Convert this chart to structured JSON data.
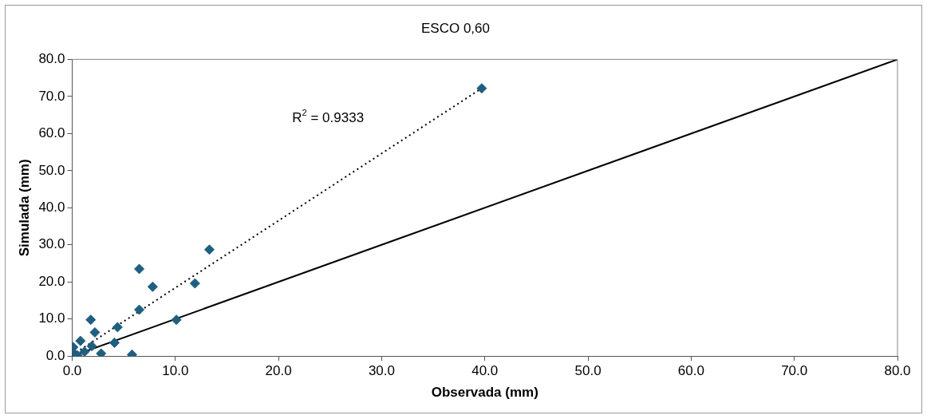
{
  "chart_data": {
    "type": "scatter",
    "title": "ESCO 0,60",
    "xlabel": "Observada (mm)",
    "ylabel": "Simulada (mm)",
    "xlim": [
      0,
      80
    ],
    "xticks": [
      {
        "value": 0,
        "label": "0.0"
      },
      {
        "value": 10,
        "label": "10.0"
      },
      {
        "value": 20,
        "label": "20.0"
      },
      {
        "value": 30,
        "label": "30.0"
      },
      {
        "value": 40,
        "label": "40.0"
      },
      {
        "value": 50,
        "label": "50.0"
      },
      {
        "value": 60,
        "label": "60.0"
      },
      {
        "value": 70,
        "label": "70.0"
      },
      {
        "value": 80,
        "label": "80.0"
      }
    ],
    "ylim": [
      0,
      80
    ],
    "yticks": [
      {
        "value": 0,
        "label": "0.0"
      },
      {
        "value": 10,
        "label": "10.0"
      },
      {
        "value": 20,
        "label": "20.0"
      },
      {
        "value": 30,
        "label": "30.0"
      },
      {
        "value": 40,
        "label": "40.0"
      },
      {
        "value": 50,
        "label": "50.0"
      },
      {
        "value": 60,
        "label": "60.0"
      },
      {
        "value": 70,
        "label": "70.0"
      },
      {
        "value": 80,
        "label": "80.0"
      }
    ],
    "grid": false,
    "legend": false,
    "marker": "diamond",
    "series": [
      {
        "color": "#1f5f80",
        "x": [
          39.7,
          13.3,
          6.5,
          7.8,
          11.9,
          6.5,
          10.1,
          1.8,
          2.2,
          4.4,
          4.1,
          0.8,
          1.9,
          2.8,
          5.8,
          1.2,
          0.1,
          0.2,
          0.5,
          0
        ],
        "values": [
          72.2,
          28.7,
          23.5,
          18.7,
          19.6,
          12.5,
          9.8,
          9.8,
          6.4,
          7.8,
          3.6,
          4.1,
          2.7,
          0.7,
          0.4,
          1.2,
          2.4,
          0.7,
          0.2,
          0.2
        ]
      },
      {
        "type": "line",
        "color": "#000000",
        "line_style": "dotted",
        "marker": "none",
        "x": [
          0,
          39.7
        ],
        "values": [
          0.3,
          72.2
        ]
      },
      {
        "type": "line",
        "color": "#000000",
        "line_style": "solid",
        "marker": "none",
        "x": [
          0,
          80
        ],
        "values": [
          0,
          80
        ]
      }
    ],
    "annotations": [
      "R$^{2}$ = 0.9333"
    ]
  }
}
